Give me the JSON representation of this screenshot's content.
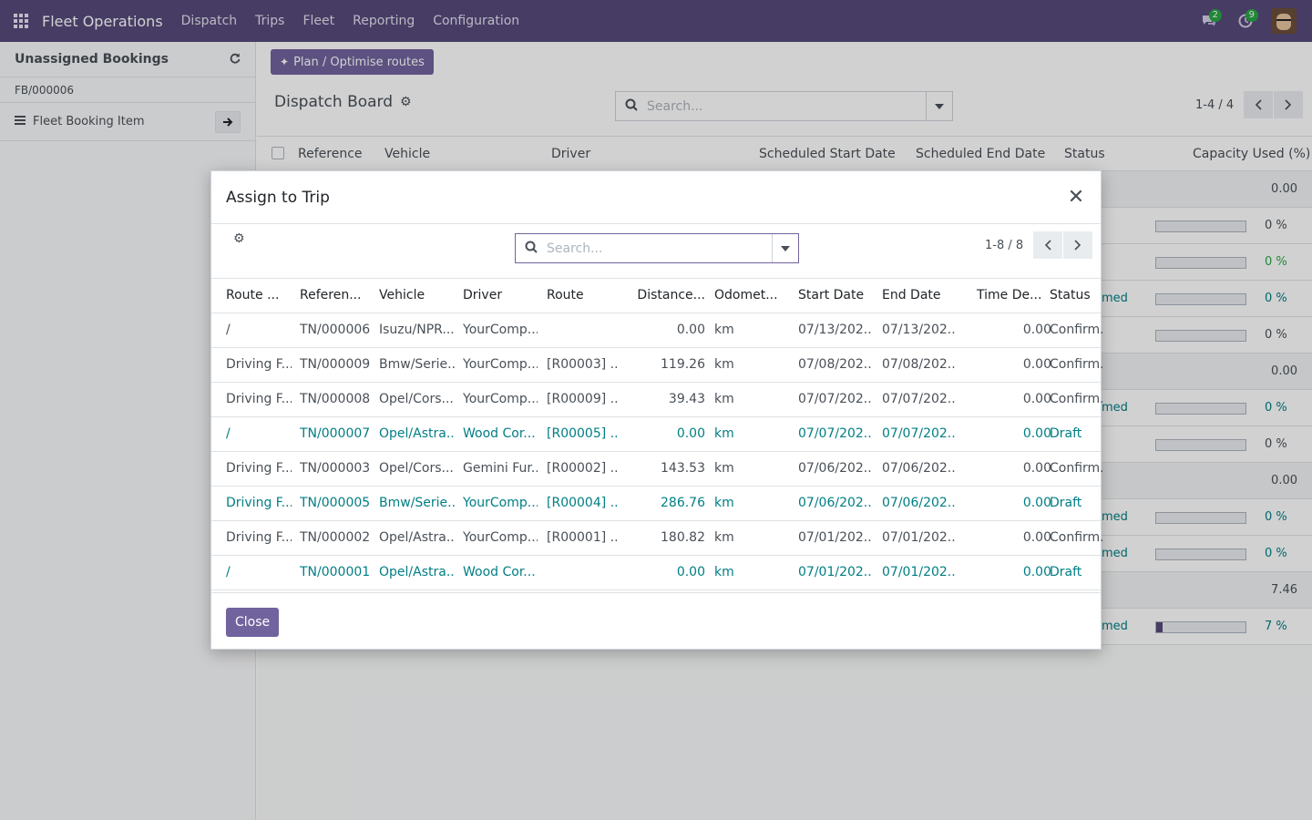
{
  "app": {
    "title": "Fleet Operations"
  },
  "nav": {
    "menu": [
      "Dispatch",
      "Trips",
      "Fleet",
      "Reporting",
      "Configuration"
    ],
    "messages_count": "2",
    "activities_count": "9"
  },
  "left_panel": {
    "title": "Unassigned Bookings",
    "booking_ref": "FB/000006",
    "item_label": "Fleet Booking Item"
  },
  "main": {
    "plan_button": "Plan / Optimise routes",
    "title": "Dispatch Board",
    "search_placeholder": "Search...",
    "pager": "1-4 / 4",
    "columns": [
      "Reference",
      "Vehicle",
      "Driver",
      "Scheduled Start Date",
      "Scheduled End Date",
      "Status",
      "Capacity Used (%)"
    ],
    "rows": [
      {
        "status": "",
        "cap_value": "0.00",
        "cap_pct": "",
        "cap_fill": null,
        "kind": "total"
      },
      {
        "status": "",
        "cap_value": "",
        "cap_pct": "0 %",
        "cap_fill": 0,
        "kind": "bar"
      },
      {
        "status": "",
        "cap_value": "",
        "cap_pct": "0 %",
        "cap_fill": 0,
        "kind": "bar-green"
      },
      {
        "status": "med",
        "cap_value": "",
        "cap_pct": "0 %",
        "cap_fill": 0,
        "kind": "bar-teal"
      },
      {
        "status": "",
        "cap_value": "",
        "cap_pct": "0 %",
        "cap_fill": 0,
        "kind": "bar"
      },
      {
        "status": "",
        "cap_value": "0.00",
        "cap_pct": "",
        "cap_fill": null,
        "kind": "total"
      },
      {
        "status": "med",
        "cap_value": "",
        "cap_pct": "0 %",
        "cap_fill": 0,
        "kind": "bar-teal"
      },
      {
        "status": "",
        "cap_value": "",
        "cap_pct": "0 %",
        "cap_fill": 0,
        "kind": "bar"
      },
      {
        "status": "",
        "cap_value": "0.00",
        "cap_pct": "",
        "cap_fill": null,
        "kind": "total"
      },
      {
        "status": "med",
        "cap_value": "",
        "cap_pct": "0 %",
        "cap_fill": 0,
        "kind": "bar-teal"
      },
      {
        "status": "med",
        "cap_value": "",
        "cap_pct": "0 %",
        "cap_fill": 0,
        "kind": "bar-teal"
      },
      {
        "status": "",
        "cap_value": "7.46",
        "cap_pct": "",
        "cap_fill": null,
        "kind": "total"
      },
      {
        "status": "med",
        "cap_value": "",
        "cap_pct": "7 %",
        "cap_fill": 0.07,
        "kind": "bar-teal"
      }
    ]
  },
  "modal": {
    "title": "Assign to Trip",
    "search_placeholder": "Search...",
    "pager": "1-8 / 8",
    "close_label": "Close",
    "columns": [
      "Route ...",
      "Referen...",
      "Vehicle",
      "Driver",
      "Route",
      "Distance...",
      "Odomet...",
      "Start Date",
      "End Date",
      "Time De...",
      "Status"
    ],
    "rows": [
      {
        "route_no": "/",
        "ref": "TN/000006",
        "vehicle": "Isuzu/NPR...",
        "driver": "YourComp...",
        "route": "",
        "distance": "0.00",
        "odo": "km",
        "start": "07/13/202...",
        "end": "07/13/202...",
        "time": "0.00",
        "status": "Confirm...",
        "draft": false
      },
      {
        "route_no": "Driving F...",
        "ref": "TN/000009",
        "vehicle": "Bmw/Serie...",
        "driver": "YourComp...",
        "route": "[R00003] ...",
        "distance": "119.26",
        "odo": "km",
        "start": "07/08/202...",
        "end": "07/08/202...",
        "time": "0.00",
        "status": "Confirm...",
        "draft": false
      },
      {
        "route_no": "Driving F...",
        "ref": "TN/000008",
        "vehicle": "Opel/Cors...",
        "driver": "YourComp...",
        "route": "[R00009] ...",
        "distance": "39.43",
        "odo": "km",
        "start": "07/07/202...",
        "end": "07/07/202...",
        "time": "0.00",
        "status": "Confirm...",
        "draft": false
      },
      {
        "route_no": "/",
        "ref": "TN/000007",
        "vehicle": "Opel/Astra...",
        "driver": "Wood Cor...",
        "route": "[R00005] ...",
        "distance": "0.00",
        "odo": "km",
        "start": "07/07/202...",
        "end": "07/07/202...",
        "time": "0.00",
        "status": "Draft",
        "draft": true
      },
      {
        "route_no": "Driving F...",
        "ref": "TN/000003",
        "vehicle": "Opel/Cors...",
        "driver": "Gemini Fur...",
        "route": "[R00002] ...",
        "distance": "143.53",
        "odo": "km",
        "start": "07/06/202...",
        "end": "07/06/202...",
        "time": "0.00",
        "status": "Confirm...",
        "draft": false
      },
      {
        "route_no": "Driving F...",
        "ref": "TN/000005",
        "vehicle": "Bmw/Serie...",
        "driver": "YourComp...",
        "route": "[R00004] ...",
        "distance": "286.76",
        "odo": "km",
        "start": "07/06/202...",
        "end": "07/06/202...",
        "time": "0.00",
        "status": "Draft",
        "draft": true
      },
      {
        "route_no": "Driving F...",
        "ref": "TN/000002",
        "vehicle": "Opel/Astra...",
        "driver": "YourComp...",
        "route": "[R00001] ...",
        "distance": "180.82",
        "odo": "km",
        "start": "07/01/202...",
        "end": "07/01/202...",
        "time": "0.00",
        "status": "Confirm...",
        "draft": false
      },
      {
        "route_no": "/",
        "ref": "TN/000001",
        "vehicle": "Opel/Astra...",
        "driver": "Wood Cor...",
        "route": "",
        "distance": "0.00",
        "odo": "km",
        "start": "07/01/202...",
        "end": "07/01/202...",
        "time": "0.00",
        "status": "Draft",
        "draft": true
      }
    ]
  },
  "colors": {
    "navbar": "#564a7a",
    "primary": "#71639e",
    "link": "#017e84",
    "success": "#28a745"
  }
}
